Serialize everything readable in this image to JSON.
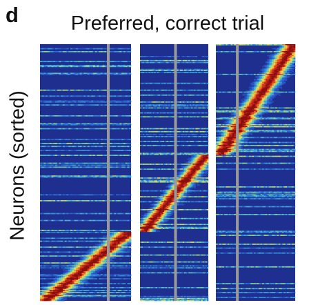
{
  "panel_label": "d",
  "chart_data": {
    "type": "heatmap",
    "title": "Preferred, correct trial",
    "xlabel": "",
    "ylabel": "Neurons (sorted)",
    "n_panels": 3,
    "n_neurons": 260,
    "peak_sequence": {
      "description_units": "fraction of neurons (top to bottom) vs peak time as fraction of panel width",
      "panel_1": {
        "neuron_range": [
          0.73,
          1.0
        ],
        "peak_time_start": 0.98,
        "peak_time_end": 0.05
      },
      "panel_2": {
        "neuron_range": [
          0.43,
          0.73
        ],
        "peak_time_start": 0.97,
        "peak_time_end": 0.05
      },
      "panel_3": {
        "neuron_range": [
          0.0,
          0.43
        ],
        "peak_time_start": 0.98,
        "peak_time_end": 0.05
      }
    },
    "event_marker_time": [
      0.75,
      0.52,
      0.27
    ],
    "colormap": [
      "#1f2f8f",
      "#2a56c8",
      "#38a9e0",
      "#8ed690",
      "#f4e04d",
      "#f59227",
      "#d7301f",
      "#8a0f0f"
    ],
    "background_color": "#1f2f8f",
    "marker_color": "#9a9a9a"
  }
}
